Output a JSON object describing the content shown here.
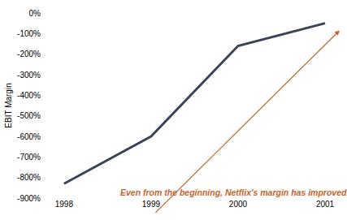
{
  "chart_data": {
    "type": "line",
    "categories": [
      "1998",
      "1999",
      "2000",
      "2001"
    ],
    "series": [
      {
        "name": "EBIT Margin",
        "color": "#3c4257",
        "values": [
          -830,
          -600,
          -160,
          -50
        ]
      }
    ],
    "y_label": "EBIT Margin",
    "ylim": [
      -900,
      0
    ],
    "yticks": [
      {
        "value": 0,
        "label": "0%"
      },
      {
        "value": -100,
        "label": "-100%"
      },
      {
        "value": -200,
        "label": "-200%"
      },
      {
        "value": -300,
        "label": "-300%"
      },
      {
        "value": -400,
        "label": "-400%"
      },
      {
        "value": -500,
        "label": "-500%"
      },
      {
        "value": -600,
        "label": "-600%"
      },
      {
        "value": -700,
        "label": "-700%"
      },
      {
        "value": -800,
        "label": "-800%"
      },
      {
        "value": -900,
        "label": "-900%"
      }
    ],
    "annotations": [
      {
        "text": "Even from the beginning, Netflix's margin has improved...",
        "color": "#c8642a"
      }
    ],
    "grid": false,
    "legend": false
  }
}
